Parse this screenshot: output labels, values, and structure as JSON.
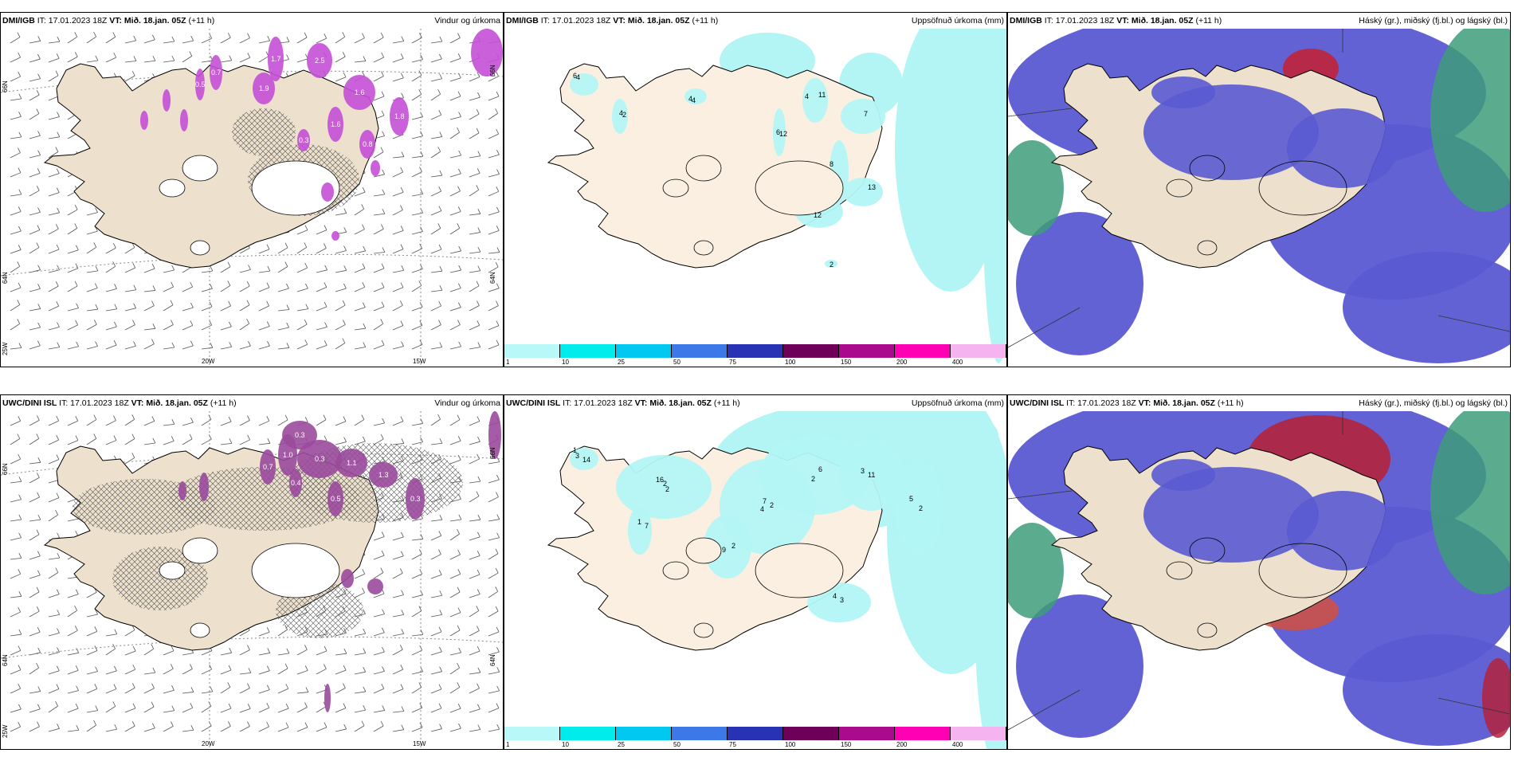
{
  "panels": [
    {
      "model": "DMI/IGB",
      "it": "17.01.2023 18Z",
      "vt": "Mið. 18.jan. 05Z",
      "lead": "(+11 h)",
      "title": "Vindur og úrkoma",
      "kind": "wind",
      "lat_labels": [
        "66N",
        "64N"
      ],
      "lon_labels": [
        "20W",
        "15W"
      ],
      "corner": "25W",
      "values": [
        "1.7",
        "2.5",
        "1.9",
        "1.6",
        "1.8",
        "0.7",
        "1.6",
        "0.8",
        "0.3",
        "0.5"
      ]
    },
    {
      "model": "DMI/IGB",
      "it": "17.01.2023 18Z",
      "vt": "Mið. 18.jan. 05Z",
      "lead": "(+11 h)",
      "title": "Uppsöfnuð úrkoma (mm)",
      "kind": "precip",
      "values": [
        "6",
        "4",
        "4",
        "11",
        "6",
        "8",
        "7",
        "12",
        "13",
        "2",
        "4",
        "2",
        "4",
        "4",
        "12"
      ]
    },
    {
      "model": "DMI/IGB",
      "it": "17.01.2023 18Z",
      "vt": "Mið. 18.jan. 05Z",
      "lead": "(+11 h)",
      "title": "Háský (gr.), miðský (fj.bl.) og lágský (bl.)",
      "kind": "cloud"
    },
    {
      "model": "UWC/DINI ISL",
      "it": "17.01.2023 18Z",
      "vt": "Mið. 18.jan. 05Z",
      "lead": "(+11 h)",
      "title": "Vindur og úrkoma",
      "kind": "wind",
      "lat_labels": [
        "66N",
        "64N"
      ],
      "lon_labels": [
        "20W",
        "15W"
      ],
      "corner": "25W",
      "values": [
        "0.3",
        "0.3",
        "1.0",
        "1.1",
        "1.3",
        "0.3",
        "0.5",
        "0.7",
        "0.4"
      ]
    },
    {
      "model": "UWC/DINI ISL",
      "it": "17.01.2023 18Z",
      "vt": "Mið. 18.jan. 05Z",
      "lead": "(+11 h)",
      "title": "Uppsöfnuð úrkoma (mm)",
      "kind": "precip",
      "values": [
        "1",
        "2",
        "4",
        "6",
        "11",
        "5",
        "3",
        "9",
        "7",
        "14",
        "16",
        "2",
        "2",
        "3",
        "2",
        "4",
        "2",
        "1",
        "3",
        "2",
        "7"
      ]
    },
    {
      "model": "UWC/DINI ISL",
      "it": "17.01.2023 18Z",
      "vt": "Mið. 18.jan. 05Z",
      "lead": "(+11 h)",
      "title": "Háský (gr.), miðský (fj.bl.) og lágský (bl.)",
      "kind": "cloud"
    }
  ],
  "colorbar": {
    "ticks": [
      "1",
      "10",
      "25",
      "50",
      "75",
      "100",
      "150",
      "200",
      "400"
    ],
    "colors": [
      "#b8f8f8",
      "#00ecec",
      "#00c8f0",
      "#3c78e8",
      "#2832b4",
      "#6e005a",
      "#aa0a8c",
      "#ff00b4",
      "#f5b4f0"
    ]
  }
}
